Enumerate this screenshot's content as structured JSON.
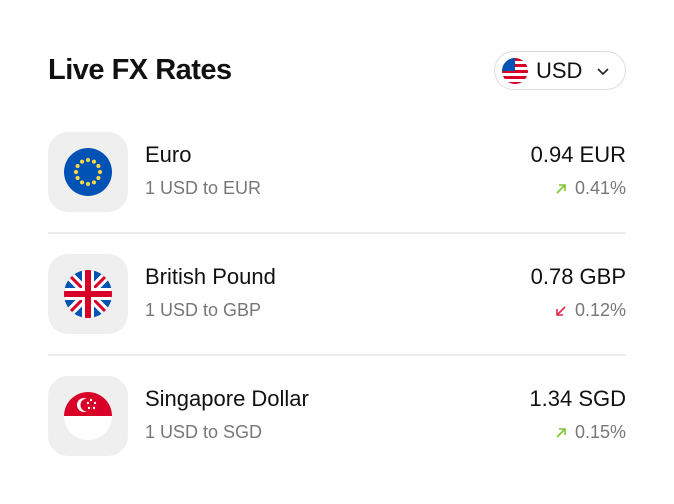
{
  "header": {
    "title": "Live FX Rates",
    "currency": {
      "code": "USD",
      "flag": "us-flag-icon"
    }
  },
  "colors": {
    "up": "#7cc734",
    "down": "#e0284a"
  },
  "rates": [
    {
      "name": "Euro",
      "subtitle": "1 USD to EUR",
      "rate": "0.94 EUR",
      "change": "0.41%",
      "direction": "up",
      "flag": "eu-flag-icon"
    },
    {
      "name": "British Pound",
      "subtitle": "1 USD to GBP",
      "rate": "0.78 GBP",
      "change": "0.12%",
      "direction": "down",
      "flag": "gb-flag-icon"
    },
    {
      "name": "Singapore Dollar",
      "subtitle": "1 USD to SGD",
      "rate": "1.34 SGD",
      "change": "0.15%",
      "direction": "up",
      "flag": "sg-flag-icon"
    }
  ]
}
